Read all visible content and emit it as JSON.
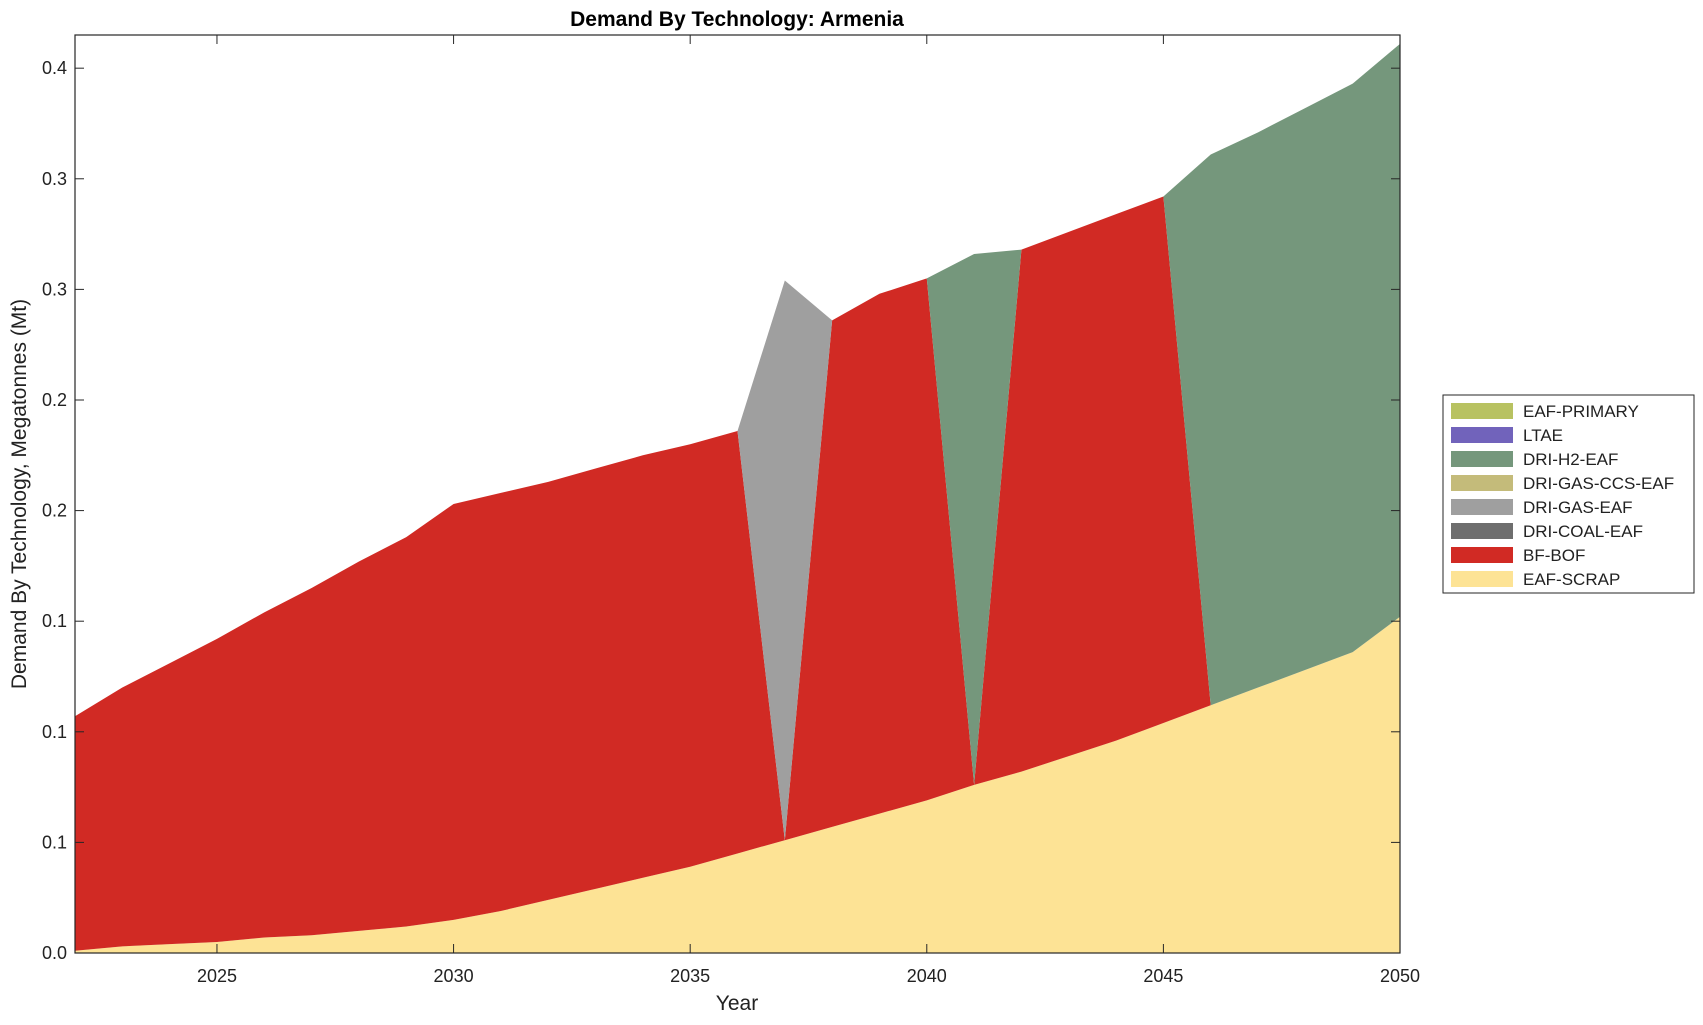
{
  "chart_data": {
    "type": "area",
    "stacked": true,
    "title": "Demand By Technology: Armenia",
    "xlabel": "Year",
    "ylabel": "Demand By Technology, Megatonnes (Mt)",
    "xlim": [
      2022,
      2050
    ],
    "ylim": [
      0,
      0.415
    ],
    "x_ticks": [
      2025,
      2030,
      2035,
      2040,
      2045,
      2050
    ],
    "y_ticks": [
      0,
      0.05,
      0.1,
      0.15,
      0.2,
      0.25,
      0.3,
      0.35,
      0.4
    ],
    "y_tick_labels": [
      "0.0",
      "0.1",
      "0.1",
      "0.1",
      "0.2",
      "0.2",
      "0.3",
      "0.3",
      "0.4"
    ],
    "x": [
      2022,
      2023,
      2024,
      2025,
      2026,
      2027,
      2028,
      2029,
      2030,
      2031,
      2032,
      2033,
      2034,
      2035,
      2036,
      2037,
      2038,
      2039,
      2040,
      2041,
      2042,
      2043,
      2044,
      2045,
      2046,
      2047,
      2048,
      2049,
      2050
    ],
    "series": [
      {
        "name": "EAF-SCRAP",
        "color": "#fde395",
        "values": [
          0.001,
          0.003,
          0.004,
          0.005,
          0.007,
          0.008,
          0.01,
          0.012,
          0.015,
          0.019,
          0.024,
          0.029,
          0.034,
          0.039,
          0.045,
          0.051,
          0.057,
          0.063,
          0.069,
          0.076,
          0.082,
          0.089,
          0.096,
          0.104,
          0.112,
          0.12,
          0.128,
          0.136,
          0.152
        ]
      },
      {
        "name": "BF-BOF",
        "color": "#d12a24",
        "values": [
          0.106,
          0.117,
          0.127,
          0.137,
          0.147,
          0.157,
          0.167,
          0.176,
          0.188,
          0.189,
          0.189,
          0.19,
          0.191,
          0.191,
          0.191,
          0,
          0.229,
          0.235,
          0.236,
          0,
          0.236,
          0.237,
          0.238,
          0.238,
          0,
          0,
          0,
          0,
          0
        ]
      },
      {
        "name": "DRI-COAL-EAF",
        "color": "#6e6e6e",
        "values": [
          0,
          0,
          0,
          0,
          0,
          0,
          0,
          0,
          0,
          0,
          0,
          0,
          0,
          0,
          0,
          0,
          0,
          0,
          0,
          0,
          0,
          0,
          0,
          0,
          0,
          0,
          0,
          0,
          0
        ]
      },
      {
        "name": "DRI-GAS-EAF",
        "color": "#9f9f9f",
        "values": [
          0,
          0,
          0,
          0,
          0,
          0,
          0,
          0,
          0,
          0,
          0,
          0,
          0,
          0,
          0,
          0.253,
          0,
          0,
          0,
          0,
          0,
          0,
          0,
          0,
          0,
          0,
          0,
          0,
          0
        ]
      },
      {
        "name": "DRI-GAS-CCS-EAF",
        "color": "#c4bb7a",
        "values": [
          0,
          0,
          0,
          0,
          0,
          0,
          0,
          0,
          0,
          0,
          0,
          0,
          0,
          0,
          0,
          0,
          0,
          0,
          0,
          0,
          0,
          0,
          0,
          0,
          0,
          0,
          0,
          0,
          0
        ]
      },
      {
        "name": "DRI-H2-EAF",
        "color": "#75977c",
        "values": [
          0,
          0,
          0,
          0,
          0,
          0,
          0,
          0,
          0,
          0,
          0,
          0,
          0,
          0,
          0,
          0,
          0,
          0,
          0,
          0.24,
          0,
          0,
          0,
          0,
          0.249,
          0.251,
          0.254,
          0.257,
          0.259
        ]
      },
      {
        "name": "LTAE",
        "color": "#7163bb",
        "values": [
          0,
          0,
          0,
          0,
          0,
          0,
          0,
          0,
          0,
          0,
          0,
          0,
          0,
          0,
          0,
          0,
          0,
          0,
          0,
          0,
          0,
          0,
          0,
          0,
          0,
          0,
          0,
          0,
          0
        ]
      },
      {
        "name": "EAF-PRIMARY",
        "color": "#b8c261",
        "values": [
          0,
          0,
          0,
          0,
          0,
          0,
          0,
          0,
          0,
          0,
          0,
          0,
          0,
          0,
          0,
          0,
          0,
          0,
          0,
          0,
          0,
          0,
          0,
          0,
          0,
          0,
          0,
          0,
          0
        ]
      }
    ],
    "legend": {
      "placement": "right",
      "order": [
        "EAF-PRIMARY",
        "LTAE",
        "DRI-H2-EAF",
        "DRI-GAS-CCS-EAF",
        "DRI-GAS-EAF",
        "DRI-COAL-EAF",
        "BF-BOF",
        "EAF-SCRAP"
      ]
    },
    "grid": false
  }
}
